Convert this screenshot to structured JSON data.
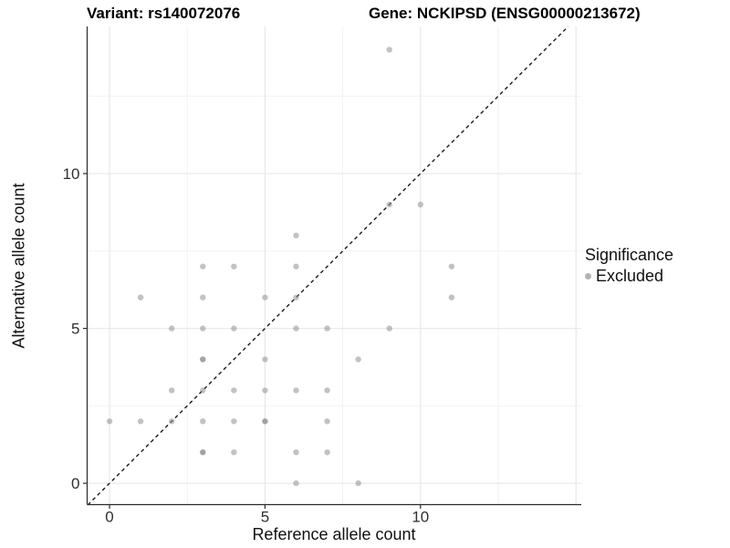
{
  "chart_data": {
    "type": "scatter",
    "title_left": "Variant: rs140072076",
    "title_right": "Gene: NCKIPSD (ENSG00000213672)",
    "xlabel": "Reference allele count",
    "ylabel": "Alternative allele count",
    "x_ticks": [
      0,
      5,
      10
    ],
    "y_ticks": [
      0,
      5,
      10
    ],
    "xlim": [
      -0.72,
      15.17
    ],
    "ylim": [
      -0.69,
      14.75
    ],
    "grid": {
      "x_major": [
        0,
        5,
        10,
        15
      ],
      "x_minor": [
        2.5,
        7.5,
        12.5
      ],
      "y_major": [
        0,
        5,
        10
      ],
      "y_minor": [
        2.5,
        7.5,
        12.5
      ]
    },
    "identity_line": {
      "equation": "y = x",
      "style": "dashed",
      "from": -0.7,
      "to": 14.75
    },
    "legend": {
      "title": "Significance",
      "position": "right",
      "items": [
        {
          "label": "Excluded",
          "shape": "circle"
        }
      ]
    },
    "points": [
      {
        "x": 6,
        "y": 0,
        "n": 1
      },
      {
        "x": 8,
        "y": 0,
        "n": 1
      },
      {
        "x": 3,
        "y": 1,
        "n": 2
      },
      {
        "x": 4,
        "y": 1,
        "n": 1
      },
      {
        "x": 6,
        "y": 1,
        "n": 1
      },
      {
        "x": 7,
        "y": 1,
        "n": 1
      },
      {
        "x": 0,
        "y": 2,
        "n": 1
      },
      {
        "x": 1,
        "y": 2,
        "n": 1
      },
      {
        "x": 2,
        "y": 2,
        "n": 1
      },
      {
        "x": 3,
        "y": 2,
        "n": 1
      },
      {
        "x": 4,
        "y": 2,
        "n": 1
      },
      {
        "x": 5,
        "y": 2,
        "n": 2
      },
      {
        "x": 7,
        "y": 2,
        "n": 1
      },
      {
        "x": 2,
        "y": 3,
        "n": 1
      },
      {
        "x": 3,
        "y": 3,
        "n": 1
      },
      {
        "x": 4,
        "y": 3,
        "n": 1
      },
      {
        "x": 5,
        "y": 3,
        "n": 1
      },
      {
        "x": 6,
        "y": 3,
        "n": 1
      },
      {
        "x": 7,
        "y": 3,
        "n": 1
      },
      {
        "x": 3,
        "y": 4,
        "n": 2
      },
      {
        "x": 5,
        "y": 4,
        "n": 1
      },
      {
        "x": 8,
        "y": 4,
        "n": 1
      },
      {
        "x": 2,
        "y": 5,
        "n": 1
      },
      {
        "x": 3,
        "y": 5,
        "n": 1
      },
      {
        "x": 4,
        "y": 5,
        "n": 1
      },
      {
        "x": 6,
        "y": 5,
        "n": 1
      },
      {
        "x": 7,
        "y": 5,
        "n": 1
      },
      {
        "x": 9,
        "y": 5,
        "n": 1
      },
      {
        "x": 1,
        "y": 6,
        "n": 1
      },
      {
        "x": 3,
        "y": 6,
        "n": 1
      },
      {
        "x": 5,
        "y": 6,
        "n": 1
      },
      {
        "x": 6,
        "y": 6,
        "n": 1
      },
      {
        "x": 11,
        "y": 6,
        "n": 1
      },
      {
        "x": 3,
        "y": 7,
        "n": 1
      },
      {
        "x": 4,
        "y": 7,
        "n": 1
      },
      {
        "x": 6,
        "y": 7,
        "n": 1
      },
      {
        "x": 11,
        "y": 7,
        "n": 1
      },
      {
        "x": 6,
        "y": 8,
        "n": 1
      },
      {
        "x": 9,
        "y": 9,
        "n": 1
      },
      {
        "x": 10,
        "y": 9,
        "n": 1
      },
      {
        "x": 9,
        "y": 14,
        "n": 1
      }
    ],
    "colors": {
      "point": "#8f8f8f",
      "point_opacity_single": 0.55,
      "point_opacity_double": 0.82,
      "grid_major": "#e4e4e4",
      "grid_minor": "#f2f2f2",
      "axis_line": "#2b2b2b",
      "identity_line": "#1a1a1a",
      "tick_text": "#303030",
      "legend_dot": "#b2b2b2"
    }
  }
}
